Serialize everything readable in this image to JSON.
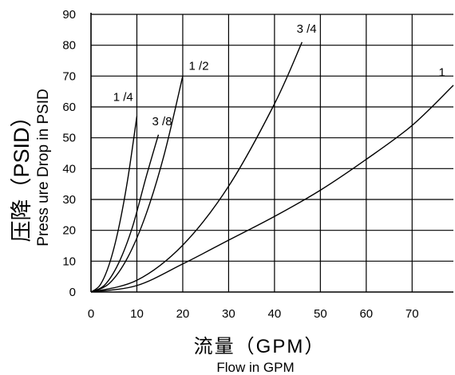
{
  "chart_data": {
    "type": "line",
    "title": "",
    "xlabel": "流量（GPM）",
    "xlabel_sub": "Flow in GPM",
    "ylabel": "压降（PSID）",
    "ylabel_sub": "Press ure Drop in PSID",
    "xlim": [
      0,
      79
    ],
    "ylim": [
      0,
      90
    ],
    "xticks": [
      0,
      10,
      20,
      30,
      40,
      50,
      60,
      70
    ],
    "yticks": [
      0,
      10,
      20,
      30,
      40,
      50,
      60,
      70,
      80,
      90
    ],
    "grid": true,
    "series": [
      {
        "name": "1 /4",
        "label_at": [
          7,
          62
        ],
        "x": [
          0,
          2,
          4,
          6,
          8,
          10
        ],
        "y": [
          0,
          2.3,
          9.1,
          20.5,
          36.5,
          57
        ]
      },
      {
        "name": "3 /8",
        "label_at": [
          15.5,
          54
        ],
        "x": [
          0,
          3,
          6,
          9,
          12,
          14.7
        ],
        "y": [
          0,
          2.3,
          9.3,
          20.9,
          37.2,
          51
        ]
      },
      {
        "name": "1 /2",
        "label_at": [
          23.5,
          72
        ],
        "x": [
          0,
          4,
          8,
          12,
          16,
          20
        ],
        "y": [
          0,
          2.8,
          11.2,
          25.2,
          44.8,
          70
        ]
      },
      {
        "name": "3 /4",
        "label_at": [
          47,
          84
        ],
        "x": [
          0,
          10,
          20,
          30,
          40,
          46
        ],
        "y": [
          0,
          3.8,
          15.2,
          34.3,
          61,
          81
        ]
      },
      {
        "name": "1",
        "label_at": [
          76.5,
          70
        ],
        "x": [
          0,
          10,
          20,
          30,
          40,
          50,
          60,
          70,
          79
        ],
        "y": [
          0,
          2.1,
          9.1,
          16.8,
          24.5,
          33,
          43,
          54,
          67
        ]
      }
    ]
  }
}
